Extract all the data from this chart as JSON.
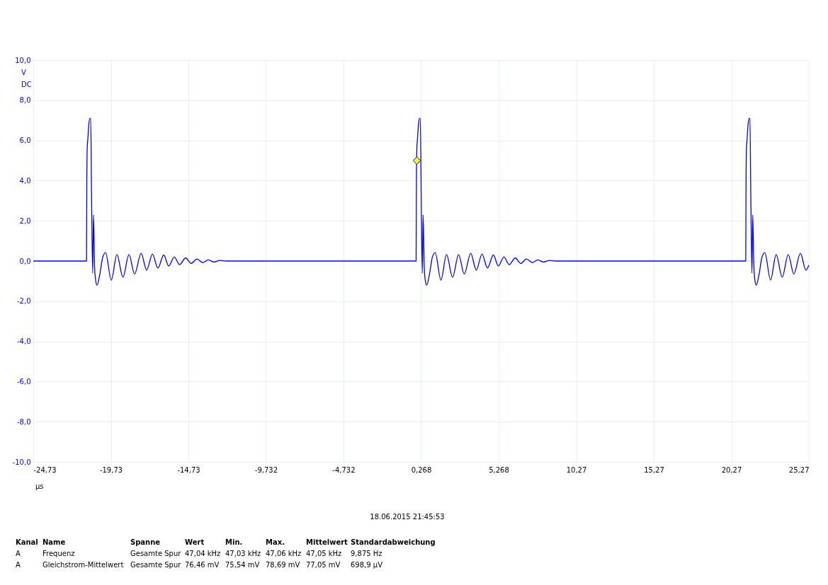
{
  "chart_data": {
    "type": "line",
    "xlabel": "µs",
    "ylabel": "V\nDC",
    "xlim": [
      -24.73,
      25.27
    ],
    "xticks": [
      {
        "value": -24.73,
        "label": "-24,73"
      },
      {
        "value": -19.73,
        "label": "-19,73"
      },
      {
        "value": -14.73,
        "label": "-14,73"
      },
      {
        "value": -9.732,
        "label": "-9,732"
      },
      {
        "value": -4.732,
        "label": "-4,732"
      },
      {
        "value": 0.268,
        "label": "0,268"
      },
      {
        "value": 5.268,
        "label": "5,268"
      },
      {
        "value": 10.27,
        "label": "10,27"
      },
      {
        "value": 15.27,
        "label": "15,27"
      },
      {
        "value": 20.27,
        "label": "20,27"
      },
      {
        "value": 25.27,
        "label": "25,27"
      }
    ],
    "ylim": [
      -10,
      10
    ],
    "yticks": [
      {
        "value": -10,
        "label": "-10,0"
      },
      {
        "value": -8,
        "label": "-8,0"
      },
      {
        "value": -6,
        "label": "-6,0"
      },
      {
        "value": -4,
        "label": "-4,0"
      },
      {
        "value": -2,
        "label": "-2,0"
      },
      {
        "value": 0,
        "label": "0,0"
      },
      {
        "value": 2,
        "label": "2,0"
      },
      {
        "value": 4,
        "label": "4,0"
      },
      {
        "value": 6,
        "label": "6,0"
      },
      {
        "value": 8,
        "label": "8,0"
      },
      {
        "value": 10,
        "label": "10,0"
      }
    ],
    "grid": true,
    "marker": "none",
    "line_style": "solid",
    "series": [
      {
        "color": "#0000ff",
        "x": [
          -24.73,
          -21.33,
          -21.3,
          -21.28,
          -21.25,
          -21.22,
          -21.15,
          -21.08,
          -21.03,
          -20.97,
          -20.9,
          -20.85,
          -20.78,
          -20.72,
          -20.62,
          -20.45,
          -20.25,
          -20.07,
          -19.7,
          -19.34,
          -18.95,
          -18.56,
          -18.2,
          -17.78,
          -17.42,
          -17.05,
          -16.7,
          -16.32,
          -16.0,
          -15.64,
          -15.3,
          -14.91,
          -14.55,
          -14.18,
          -13.8,
          -13.45,
          -13.1,
          -12.7,
          -12.3,
          -0.08,
          -0.05,
          -0.03,
          0.0,
          0.03,
          0.1,
          0.17,
          0.22,
          0.28,
          0.35,
          0.4,
          0.47,
          0.53,
          0.63,
          0.8,
          1.0,
          1.18,
          1.55,
          1.91,
          2.3,
          2.69,
          3.05,
          3.47,
          3.83,
          4.2,
          4.55,
          4.93,
          5.25,
          5.61,
          5.95,
          6.34,
          6.7,
          7.07,
          7.45,
          7.8,
          8.15,
          8.55,
          8.95,
          21.17,
          21.2,
          21.22,
          21.25,
          21.28,
          21.35,
          21.42,
          21.47,
          21.53,
          21.6,
          21.65,
          21.72,
          21.78,
          21.88,
          22.05,
          22.25,
          22.43,
          22.8,
          23.16,
          23.55,
          23.94,
          24.3,
          24.72,
          25.08,
          25.27
        ],
        "values": [
          0,
          0,
          0,
          4.0,
          5.7,
          6.0,
          6.8,
          7.1,
          7.1,
          3.0,
          -0.6,
          2.3,
          -0.2,
          -0.9,
          -1.2,
          -0.7,
          0.2,
          0.42,
          -0.95,
          0.32,
          -0.8,
          0.32,
          -0.65,
          0.38,
          -0.45,
          0.35,
          -0.35,
          0.3,
          -0.25,
          0.2,
          -0.18,
          0.15,
          -0.12,
          0.1,
          -0.08,
          0.06,
          -0.05,
          0.03,
          0,
          0,
          0,
          4.0,
          5.7,
          6.0,
          6.8,
          7.1,
          7.1,
          3.0,
          -0.6,
          2.3,
          -0.2,
          -0.9,
          -1.2,
          -0.7,
          0.2,
          0.42,
          -0.95,
          0.32,
          -0.8,
          0.32,
          -0.65,
          0.38,
          -0.45,
          0.35,
          -0.35,
          0.3,
          -0.25,
          0.2,
          -0.18,
          0.15,
          -0.12,
          0.1,
          -0.08,
          0.06,
          -0.05,
          0.03,
          0,
          0,
          0,
          4.0,
          5.7,
          6.0,
          6.8,
          7.1,
          7.1,
          3.0,
          -0.6,
          2.3,
          -0.2,
          -0.9,
          -1.2,
          -0.7,
          0.2,
          0.42,
          -0.95,
          0.32,
          -0.8,
          0.32,
          -0.65,
          0.38,
          -0.45,
          -0.2
        ]
      },
      {
        "type": "scatter",
        "marker": "diamond",
        "color": "#ffff00",
        "x": [
          0
        ],
        "values": [
          5
        ]
      }
    ],
    "annotations": [
      "18.06.2015 21:45:53",
      "Kanal\tName\tSpanne\tWert\tMin.\tMax.\tMittelwert\tStandardabweichung",
      "A\tFrequenz\tGesamte Spur\t47,04 kHz\t47,03 kHz\t47,06 kHz\t47,05 kHz\t9,875 Hz",
      "A\tGleichstrom-Mittelwert\tGesamte Spur\t76,46 mV\t75,54 mV\t78,69 mV\t77,05 mV\t698,9 µV"
    ]
  }
}
